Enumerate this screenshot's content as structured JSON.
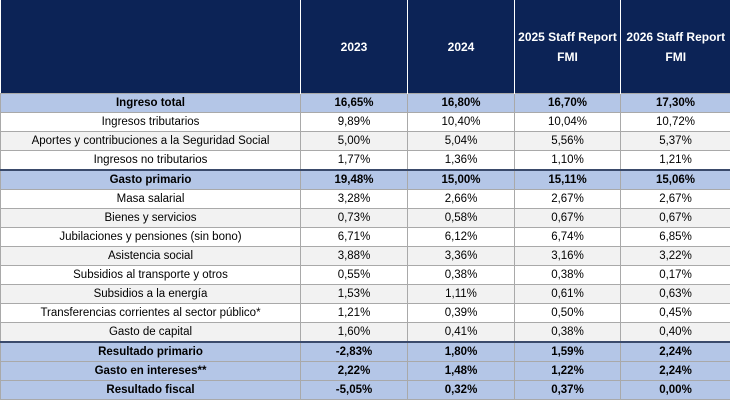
{
  "header": {
    "label_col": "",
    "years": [
      "2023",
      "2024",
      "2025 Staff Report FMI",
      "2026 Staff Report FMI"
    ]
  },
  "rows": [
    {
      "label": "Ingreso total",
      "values": [
        "16,65%",
        "16,80%",
        "16,70%",
        "17,30%"
      ],
      "style": "bold"
    },
    {
      "label": "Ingresos tributarios",
      "values": [
        "9,89%",
        "10,40%",
        "10,04%",
        "10,72%"
      ],
      "style": "normal"
    },
    {
      "label": "Aportes y contribuciones a la Seguridad Social",
      "values": [
        "5,00%",
        "5,04%",
        "5,56%",
        "5,37%"
      ],
      "style": "alt"
    },
    {
      "label": "Ingresos no tributarios",
      "values": [
        "1,77%",
        "1,36%",
        "1,10%",
        "1,21%"
      ],
      "style": "normal"
    },
    {
      "label": "Gasto primario",
      "values": [
        "19,48%",
        "15,00%",
        "15,11%",
        "15,06%"
      ],
      "style": "bold"
    },
    {
      "label": "Masa salarial",
      "values": [
        "3,28%",
        "2,66%",
        "2,67%",
        "2,67%"
      ],
      "style": "normal"
    },
    {
      "label": "Bienes y servicios",
      "values": [
        "0,73%",
        "0,58%",
        "0,67%",
        "0,67%"
      ],
      "style": "alt"
    },
    {
      "label": "Jubilaciones y pensiones (sin bono)",
      "values": [
        "6,71%",
        "6,12%",
        "6,74%",
        "6,85%"
      ],
      "style": "normal"
    },
    {
      "label": "Asistencia social",
      "values": [
        "3,88%",
        "3,36%",
        "3,16%",
        "3,22%"
      ],
      "style": "alt"
    },
    {
      "label": "Subsidios al transporte y otros",
      "values": [
        "0,55%",
        "0,38%",
        "0,38%",
        "0,17%"
      ],
      "style": "normal"
    },
    {
      "label": "Subsidios a la energía",
      "values": [
        "1,53%",
        "1,11%",
        "0,61%",
        "0,63%"
      ],
      "style": "alt"
    },
    {
      "label": "Transferencias corrientes al sector público*",
      "values": [
        "1,21%",
        "0,39%",
        "0,50%",
        "0,45%"
      ],
      "style": "normal"
    },
    {
      "label": "Gasto de capital",
      "values": [
        "1,60%",
        "0,41%",
        "0,38%",
        "0,40%"
      ],
      "style": "alt"
    },
    {
      "label": "Resultado primario",
      "values": [
        "-2,83%",
        "1,80%",
        "1,59%",
        "2,24%"
      ],
      "style": "bold"
    },
    {
      "label": "Gasto en intereses**",
      "values": [
        "2,22%",
        "1,48%",
        "1,22%",
        "2,24%"
      ],
      "style": "bold"
    },
    {
      "label": "Resultado fiscal",
      "values": [
        "-5,05%",
        "0,32%",
        "0,37%",
        "0,00%"
      ],
      "style": "bold"
    }
  ],
  "colors": {
    "header_bg": "#0c2356",
    "bold_row_bg": "#b4c6e7",
    "alt_row_bg": "#f2f2f2"
  }
}
